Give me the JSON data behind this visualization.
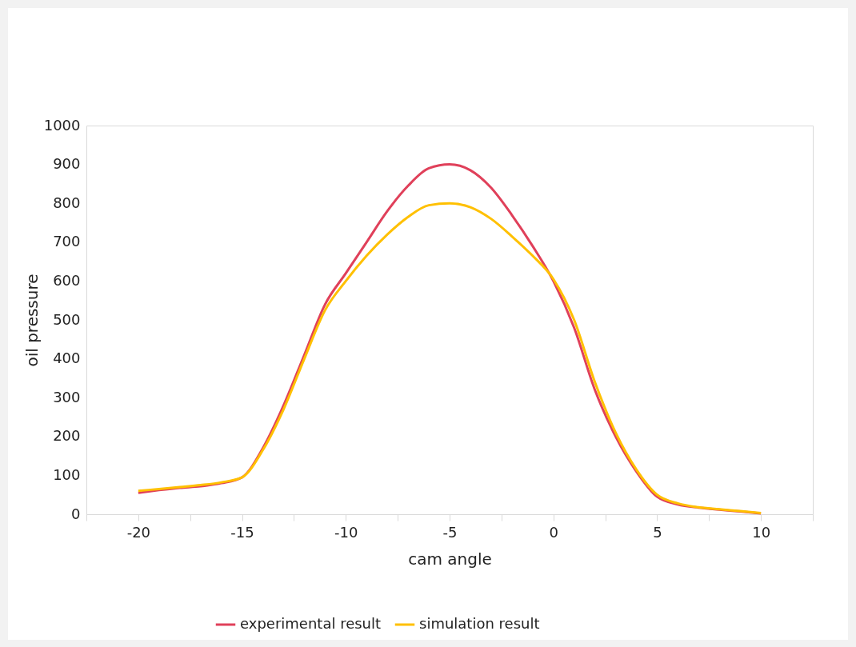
{
  "chart_data": {
    "type": "line",
    "xlabel": "cam angle",
    "ylabel": "oil pressure",
    "x": [
      -20,
      -19,
      -18,
      -17,
      -16,
      -15,
      -14,
      -13,
      -12,
      -11,
      -10,
      -9,
      -8,
      -7,
      -6,
      -5,
      -4,
      -3,
      -2,
      -1,
      0,
      1,
      2,
      3,
      4,
      5,
      6,
      7,
      8,
      9,
      10
    ],
    "series": [
      {
        "name": "experimental result",
        "color": "#e0405a",
        "values": [
          55,
          62,
          68,
          72,
          80,
          95,
          170,
          280,
          410,
          540,
          620,
          700,
          780,
          845,
          890,
          900,
          885,
          840,
          770,
          690,
          600,
          480,
          320,
          200,
          110,
          45,
          25,
          17,
          12,
          7,
          2
        ]
      },
      {
        "name": "simulation result",
        "color": "#ffc000",
        "values": [
          60,
          65,
          70,
          75,
          82,
          95,
          165,
          270,
          400,
          525,
          600,
          665,
          720,
          765,
          795,
          800,
          790,
          760,
          715,
          665,
          605,
          500,
          340,
          210,
          115,
          50,
          28,
          18,
          13,
          8,
          3
        ]
      }
    ],
    "xlim": [
      -22.5,
      12.5
    ],
    "xticks": [
      {
        "value": -22.5,
        "label": null
      },
      -20,
      {
        "value": -17.5,
        "label": null
      },
      -15,
      {
        "value": -12.5,
        "label": null
      },
      -10,
      {
        "value": -7.5,
        "label": null
      },
      -5,
      {
        "value": -2.5,
        "label": null
      },
      0,
      {
        "value": 2.5,
        "label": null
      },
      5,
      {
        "value": 7.5,
        "label": null
      },
      10,
      {
        "value": 12.5,
        "label": null
      }
    ],
    "ylim": [
      0,
      1000
    ],
    "yticks": [
      0,
      100,
      200,
      300,
      400,
      500,
      600,
      700,
      800,
      900,
      1000
    ],
    "grid": false,
    "legend": "bottom",
    "line_style": "solid",
    "marker": "none"
  }
}
